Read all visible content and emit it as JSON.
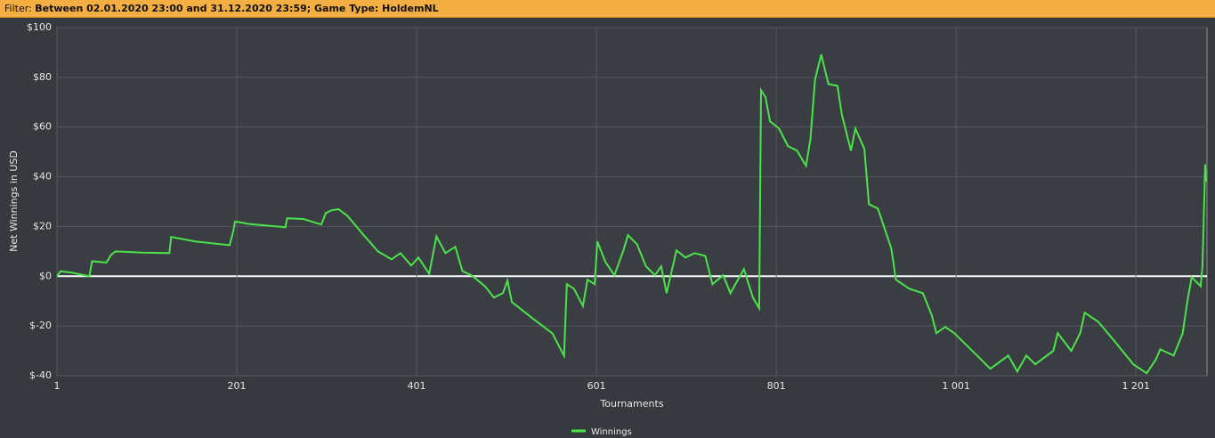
{
  "filter": {
    "label": "Filter:",
    "value": "Between 02.01.2020 23:00 and 31.12.2020 23:59; Game Type: HoldemNL"
  },
  "chart_data": {
    "type": "line",
    "xlabel": "Tournaments",
    "ylabel": "Net Winnings in USD",
    "xlim": [
      1,
      1280
    ],
    "ylim": [
      -40,
      100
    ],
    "xticks": [
      1,
      201,
      401,
      601,
      801,
      {
        "value": 1001,
        "label": "1 001"
      },
      {
        "value": 1201,
        "label": "1 201"
      }
    ],
    "yticks": [
      {
        "value": 100,
        "label": "$100"
      },
      {
        "value": 80,
        "label": "$80"
      },
      {
        "value": 60,
        "label": "$60"
      },
      {
        "value": 40,
        "label": "$40"
      },
      {
        "value": 20,
        "label": "$20"
      },
      {
        "value": 0,
        "label": "$0"
      },
      {
        "value": -20,
        "label": "$-20"
      },
      {
        "value": -40,
        "label": "$-40"
      }
    ],
    "grid": true,
    "x": [
      1,
      5,
      17,
      37,
      40,
      56,
      61,
      66,
      96,
      126,
      128,
      155,
      193,
      197,
      199,
      215,
      255,
      257,
      275,
      295,
      300,
      306,
      314,
      324,
      338,
      358,
      373,
      383,
      395,
      403,
      415,
      423,
      433,
      444,
      452,
      462,
      477,
      487,
      497,
      502,
      507,
      532,
      552,
      565,
      568,
      576,
      586,
      591,
      599,
      602,
      611,
      621,
      631,
      636,
      646,
      656,
      666,
      673,
      679,
      690,
      700,
      710,
      722,
      730,
      742,
      750,
      765,
      775,
      782,
      784,
      789,
      794,
      804,
      814,
      824,
      834,
      839,
      844,
      851,
      859,
      869,
      874,
      884,
      889,
      899,
      904,
      914,
      929,
      934,
      949,
      964,
      974,
      979,
      989,
      999,
      1019,
      1039,
      1059,
      1069,
      1079,
      1089,
      1109,
      1114,
      1129,
      1139,
      1144,
      1159,
      1178,
      1198,
      1213,
      1223,
      1228,
      1243,
      1253,
      1258,
      1263,
      1273,
      1275,
      1278,
      1279
    ],
    "series": [
      {
        "name": "Winnings",
        "color": "#4ce24c",
        "values": [
          0,
          2,
          1.5,
          0,
          6,
          5.5,
          8.5,
          10,
          9.5,
          9.3,
          15.8,
          14,
          12.5,
          18,
          22,
          21,
          19.7,
          23.3,
          23,
          20.8,
          25.4,
          26.5,
          27,
          24.3,
          18.3,
          10,
          6.8,
          9.3,
          4.3,
          7.5,
          1,
          16,
          9.3,
          11.8,
          2,
          0.4,
          -4,
          -8.6,
          -6.8,
          -1.8,
          -10.4,
          -17.5,
          -23,
          -32,
          -3.2,
          -5,
          -12,
          -1.4,
          -3.2,
          14,
          5.7,
          0.4,
          10.4,
          16.5,
          12.9,
          4,
          0.4,
          4,
          -6.8,
          10.4,
          7.5,
          9.3,
          8.2,
          -3.2,
          0.4,
          -6.8,
          2.9,
          -8.6,
          -12.9,
          74.8,
          72,
          62.3,
          59.4,
          52.3,
          50.5,
          44.4,
          55.1,
          79,
          89.2,
          77.3,
          76.6,
          64.8,
          50.5,
          59.4,
          51.2,
          29,
          27.2,
          11.1,
          -1.4,
          -5,
          -6.8,
          -15.8,
          -22.9,
          -20.4,
          -22.9,
          -30,
          -37.2,
          -31.9,
          -38.3,
          -31.9,
          -35.4,
          -30,
          -22.9,
          -30,
          -22.9,
          -14.7,
          -18.3,
          -26.5,
          -35.4,
          -39,
          -33.6,
          -29.4,
          -31.9,
          -22.9,
          -10.4,
          -0.4,
          -4,
          3.9,
          45,
          38
        ]
      }
    ]
  }
}
